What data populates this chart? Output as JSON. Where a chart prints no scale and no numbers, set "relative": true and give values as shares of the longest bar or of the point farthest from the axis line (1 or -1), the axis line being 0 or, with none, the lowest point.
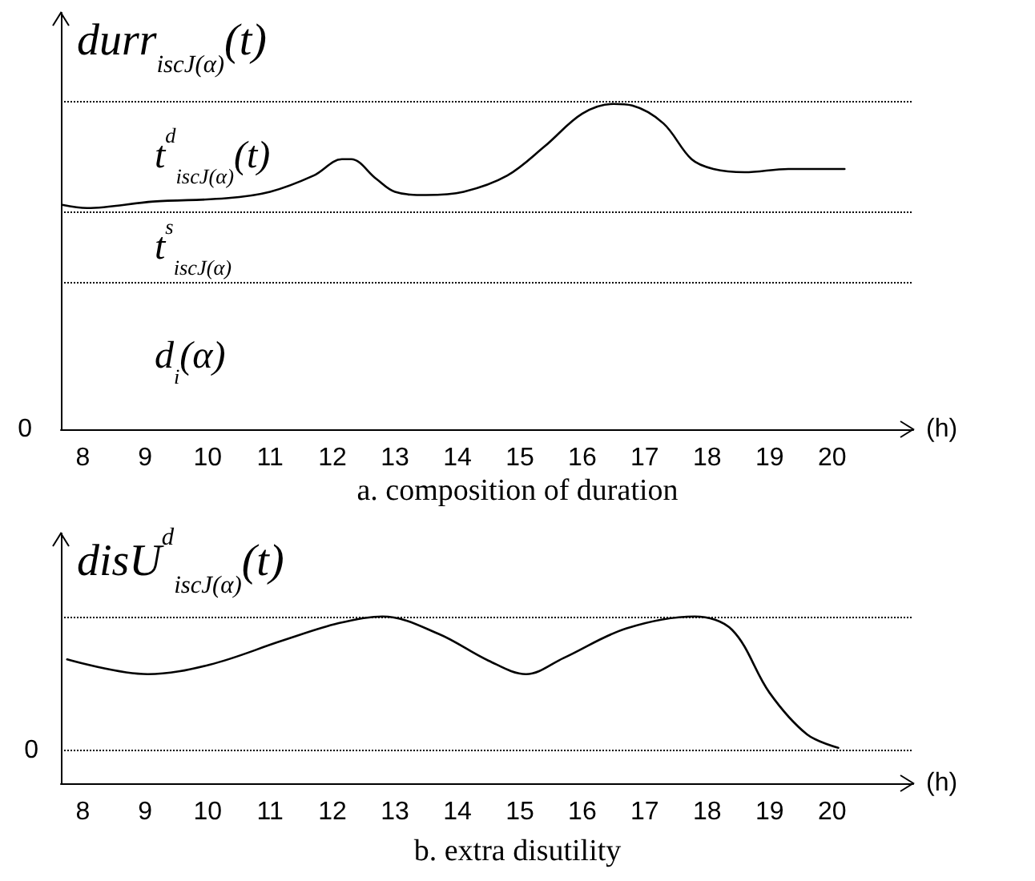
{
  "chart_data": [
    {
      "type": "line",
      "title": "a. composition of duration",
      "ylabel": "durr$_{iscJ(α)}$(t)",
      "xlabel": "(h)",
      "relative": true,
      "xlim": [
        7.65,
        21.3
      ],
      "xticks": [
        8,
        9,
        10,
        11,
        12,
        13,
        14,
        15,
        16,
        17,
        18,
        19,
        20
      ],
      "marker": "none",
      "line_style": "solid",
      "x": [
        7.67,
        8.07,
        9.13,
        10.3,
        11.0,
        11.7,
        12.15,
        12.3,
        12.7,
        13.0,
        13.5,
        14.1,
        14.8,
        15.4,
        16.0,
        16.5,
        16.8,
        17.3,
        17.75,
        18.1,
        18.6,
        19.3,
        19.9,
        20.2
      ],
      "series": [
        {
          "color": "#000000",
          "values": [
            0.69,
            0.68,
            0.7,
            0.71,
            0.73,
            0.78,
            0.83,
            0.83,
            0.77,
            0.73,
            0.72,
            0.73,
            0.78,
            0.87,
            0.97,
            1.0,
            0.995,
            0.94,
            0.83,
            0.8,
            0.79,
            0.8,
            0.8,
            0.8
          ]
        }
      ],
      "ref_lines": [
        {
          "axis": "y",
          "value": 1.01,
          "line_style": "dotted",
          "color": "#000000"
        },
        {
          "axis": "y",
          "value": 0.67,
          "line_style": "dotted",
          "color": "#000000"
        },
        {
          "axis": "y",
          "value": 0.45,
          "line_style": "dotted",
          "color": "#000000"
        }
      ],
      "annotations": [
        "0",
        "d$_{i}$(α)",
        "t$^{s}$$_{iscJ(α)}$",
        "t$^{d}$$_{iscJ(α)}$(t)"
      ]
    },
    {
      "type": "line",
      "title": "b. extra disutility",
      "ylabel": "disU$^{d}$$_{iscJ(α)}$(t)",
      "xlabel": "(h)",
      "relative": true,
      "xlim": [
        7.65,
        21.3
      ],
      "xticks": [
        8,
        9,
        10,
        11,
        12,
        13,
        14,
        15,
        16,
        17,
        18,
        19,
        20
      ],
      "marker": "none",
      "line_style": "solid",
      "x": [
        7.75,
        9.04,
        10.03,
        11.2,
        12.1,
        12.8,
        13.7,
        14.5,
        15.1,
        15.7,
        16.7,
        17.8,
        18.4,
        19.0,
        19.6,
        20.1
      ],
      "series": [
        {
          "color": "#000000",
          "values": [
            0.68,
            0.57,
            0.64,
            0.82,
            0.95,
            1.0,
            0.87,
            0.67,
            0.57,
            0.69,
            0.91,
            1.0,
            0.9,
            0.43,
            0.12,
            0.02
          ]
        }
      ],
      "ref_lines": [
        {
          "axis": "y",
          "value": 1.0,
          "line_style": "dotted",
          "color": "#000000"
        },
        {
          "axis": "y",
          "value": 0,
          "line_style": "dotted",
          "color": "#000000",
          "label": "0"
        }
      ]
    }
  ]
}
